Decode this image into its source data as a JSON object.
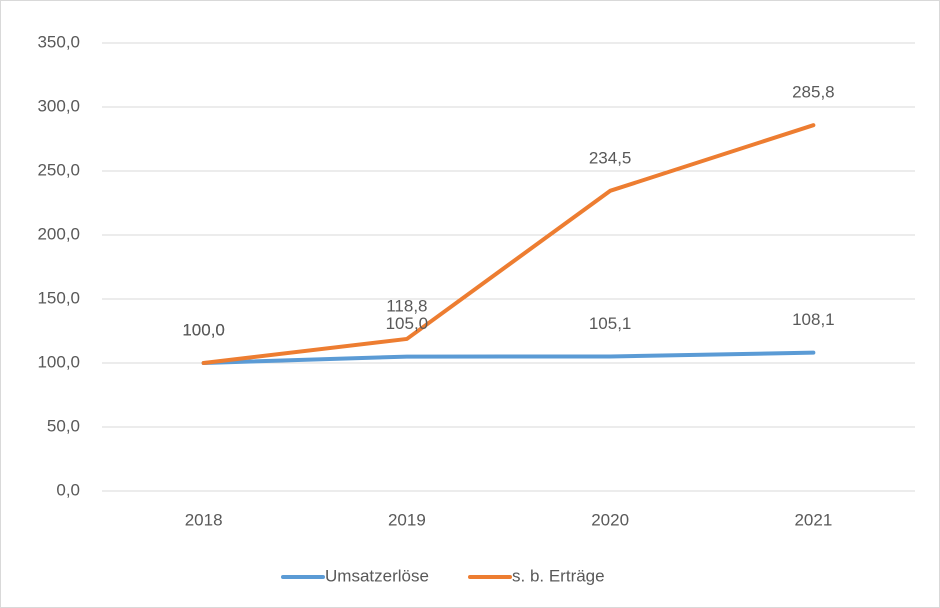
{
  "chart_data": {
    "type": "line",
    "categories": [
      "2018",
      "2019",
      "2020",
      "2021"
    ],
    "series": [
      {
        "name": "Umsatzerlöse",
        "color": "#5b9bd5",
        "values": [
          100.0,
          105.0,
          105.1,
          108.1
        ],
        "value_labels": [
          "100,0",
          "105,0",
          "105,1",
          "108,1"
        ]
      },
      {
        "name": "s. b. Erträge",
        "color": "#ed7d31",
        "values": [
          100.0,
          118.8,
          234.5,
          285.8
        ],
        "value_labels": [
          "100,0",
          "118,8",
          "234,5",
          "285,8"
        ]
      }
    ],
    "ylim": [
      0,
      350
    ],
    "yticks": [
      {
        "value": 0,
        "label": "0,0"
      },
      {
        "value": 50,
        "label": "50,0"
      },
      {
        "value": 100,
        "label": "100,0"
      },
      {
        "value": 150,
        "label": "150,0"
      },
      {
        "value": 200,
        "label": "200,0"
      },
      {
        "value": 250,
        "label": "250,0"
      },
      {
        "value": 300,
        "label": "300,0"
      },
      {
        "value": 350,
        "label": "350,0"
      }
    ],
    "grid": true,
    "legend": "bottom"
  }
}
